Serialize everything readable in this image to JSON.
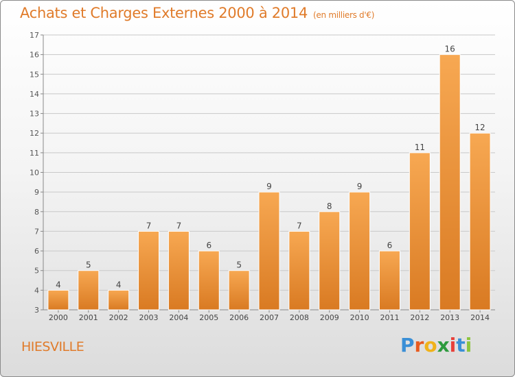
{
  "title": "Achats et Charges Externes 2000 à 2014",
  "unit": "(en milliers d'€)",
  "commune": "HIESVILLE",
  "logo": {
    "letters": [
      "P",
      "r",
      "o",
      "x",
      "i",
      "t",
      "i"
    ],
    "colors": [
      "#3a8fd6",
      "#e85b1f",
      "#f0b21a",
      "#2d9a3e",
      "#e8403a",
      "#3a8fd6",
      "#8cc43c"
    ]
  },
  "colors": {
    "bar": "#ef8a2e",
    "bar_light": "#f7a852",
    "bar_dark": "#d97a22",
    "text": "#e07b2a"
  },
  "chart_data": {
    "type": "bar",
    "categories": [
      "2000",
      "2001",
      "2002",
      "2003",
      "2004",
      "2005",
      "2006",
      "2007",
      "2008",
      "2009",
      "2010",
      "2011",
      "2012",
      "2013",
      "2014"
    ],
    "values": [
      4,
      5,
      4,
      7,
      7,
      6,
      5,
      9,
      7,
      8,
      9,
      6,
      11,
      16,
      12
    ],
    "ylim": [
      3,
      17
    ],
    "yticks": [
      3,
      4,
      5,
      6,
      7,
      8,
      9,
      10,
      11,
      12,
      13,
      14,
      15,
      16,
      17
    ],
    "grid": true,
    "data_labels": true
  }
}
